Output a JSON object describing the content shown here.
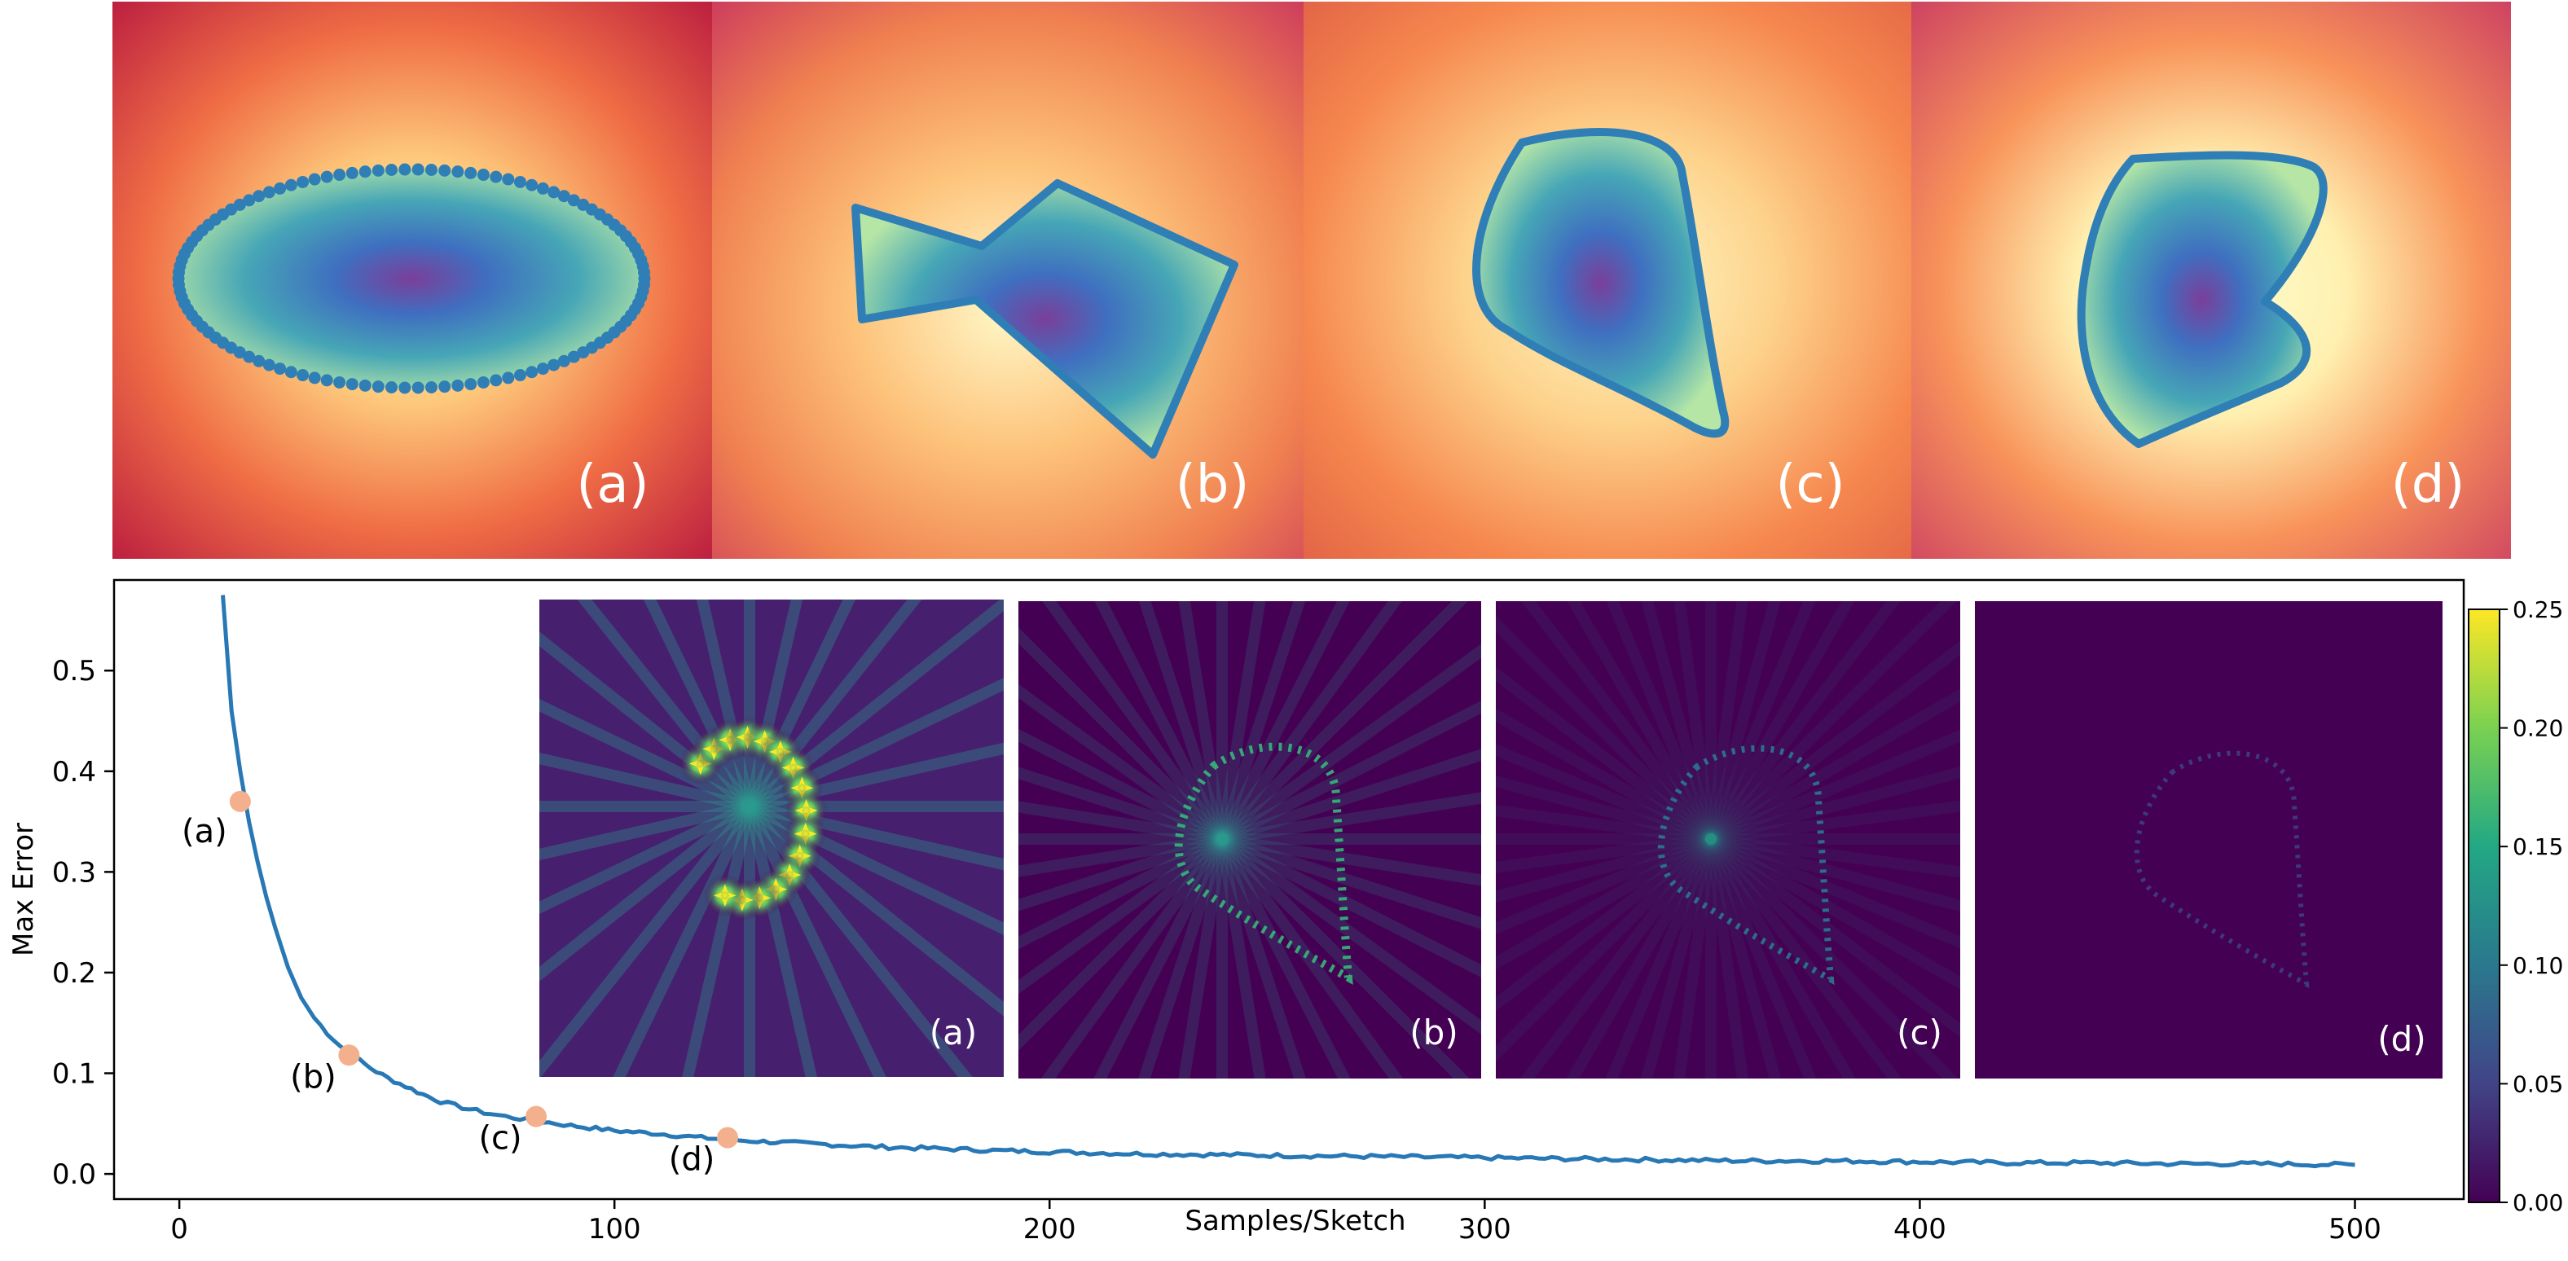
{
  "top_panels": [
    {
      "id": "a",
      "label": "(a)",
      "shape": "ellipse"
    },
    {
      "id": "b",
      "label": "(b)",
      "shape": "fish"
    },
    {
      "id": "c",
      "label": "(c)",
      "shape": "drop"
    },
    {
      "id": "d",
      "label": "(d)",
      "shape": "crescent"
    }
  ],
  "inset_panels": [
    {
      "id": "a",
      "label": "(a)",
      "intensity": 1.0
    },
    {
      "id": "b",
      "label": "(b)",
      "intensity": 0.55
    },
    {
      "id": "c",
      "label": "(c)",
      "intensity": 0.3
    },
    {
      "id": "d",
      "label": "(d)",
      "intensity": 0.12
    }
  ],
  "colors": {
    "line": "#2878b5",
    "marker": "#f4b08c",
    "outline": "#2f7fb6",
    "inset_bg": "#440154"
  },
  "chart_data": {
    "type": "line",
    "xlabel": "Samples/Sketch",
    "ylabel": "Max Error",
    "xlim": [
      -15,
      525
    ],
    "ylim": [
      -0.025,
      0.59
    ],
    "xticks": [
      0,
      100,
      200,
      300,
      400,
      500
    ],
    "xtick_labels": [
      "0",
      "100",
      "200",
      "300",
      "400",
      "500"
    ],
    "yticks": [
      0.0,
      0.1,
      0.2,
      0.3,
      0.4,
      0.5
    ],
    "ytick_labels": [
      "0.0",
      "0.1",
      "0.2",
      "0.3",
      "0.4",
      "0.5"
    ],
    "grid": false,
    "series": [
      {
        "x": [
          10,
          12,
          14,
          16,
          18,
          20,
          22,
          25,
          28,
          31,
          34,
          37,
          40,
          44,
          48,
          52,
          56,
          60,
          65,
          70,
          75,
          80,
          85,
          90,
          100,
          110,
          120,
          130,
          140,
          150,
          160,
          175,
          190,
          200,
          220,
          240,
          260,
          280,
          300,
          320,
          340,
          360,
          380,
          400,
          420,
          440,
          460,
          480,
          500
        ],
        "y": [
          0.575,
          0.46,
          0.4,
          0.35,
          0.31,
          0.275,
          0.245,
          0.205,
          0.175,
          0.155,
          0.14,
          0.127,
          0.117,
          0.105,
          0.095,
          0.087,
          0.079,
          0.072,
          0.066,
          0.061,
          0.057,
          0.054,
          0.051,
          0.048,
          0.043,
          0.04,
          0.036,
          0.033,
          0.031,
          0.029,
          0.027,
          0.025,
          0.023,
          0.022,
          0.02,
          0.019,
          0.018,
          0.017,
          0.016,
          0.015,
          0.014,
          0.013,
          0.013,
          0.012,
          0.011,
          0.011,
          0.01,
          0.01,
          0.009
        ]
      }
    ],
    "markers": [
      {
        "label": "(a)",
        "x": 14,
        "y": 0.37
      },
      {
        "label": "(b)",
        "x": 39,
        "y": 0.118
      },
      {
        "label": "(c)",
        "x": 82,
        "y": 0.057
      },
      {
        "label": "(d)",
        "x": 126,
        "y": 0.036
      }
    ],
    "colorbar": {
      "range": [
        0.0,
        0.25
      ],
      "ticks": [
        0.0,
        0.05,
        0.1,
        0.15,
        0.2,
        0.25
      ],
      "tick_labels": [
        "0.00",
        "0.05",
        "0.10",
        "0.15",
        "0.20",
        "0.25"
      ]
    }
  }
}
